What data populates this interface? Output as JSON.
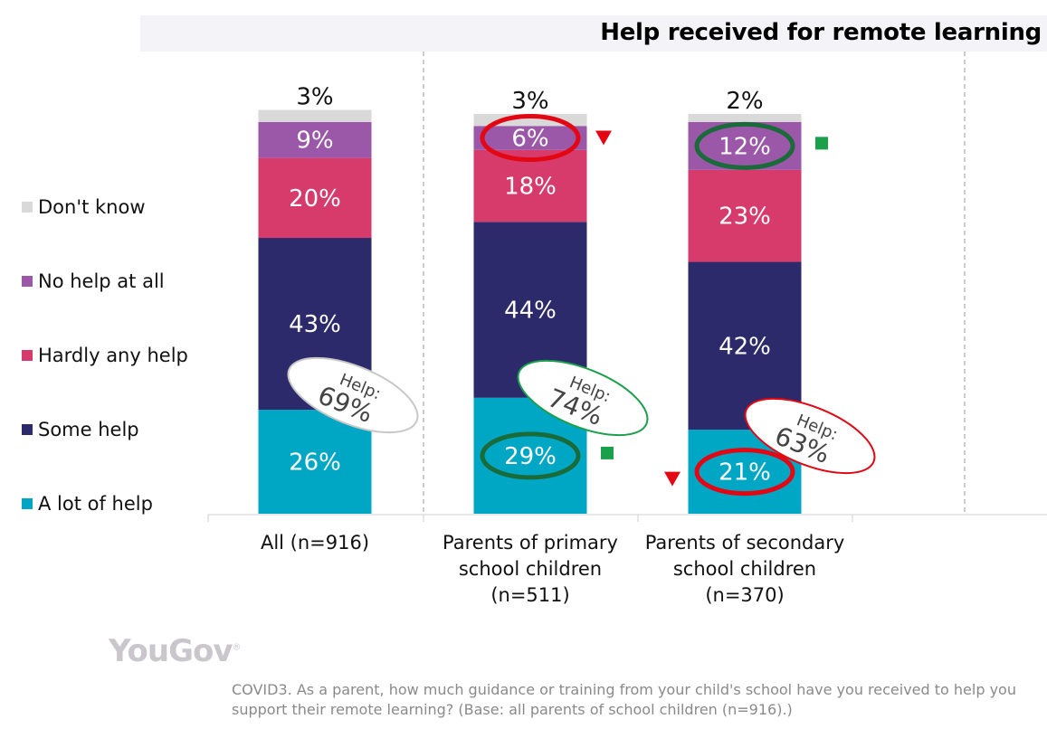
{
  "chart_data": {
    "type": "bar",
    "stacked": true,
    "title": "Help received for remote learning",
    "categories": [
      "All (n=916)",
      "Parents of primary school children (n=511)",
      "Parents of secondary school children (n=370)"
    ],
    "category_lines": [
      [
        "All (n=916)"
      ],
      [
        "Parents of primary",
        "school children",
        "(n=511)"
      ],
      [
        "Parents of secondary",
        "school children",
        "(n=370)"
      ]
    ],
    "series": [
      {
        "name": "A lot of help",
        "values": [
          26,
          29,
          21
        ],
        "color": "#00a7c5"
      },
      {
        "name": "Some help",
        "values": [
          43,
          44,
          42
        ],
        "color": "#2c2a6b"
      },
      {
        "name": "Hardly any help",
        "values": [
          20,
          18,
          23
        ],
        "color": "#d63b6c"
      },
      {
        "name": "No help at all",
        "values": [
          9,
          6,
          12
        ],
        "color": "#9b57a8"
      },
      {
        "name": "Don't know",
        "values": [
          3,
          3,
          2
        ],
        "color": "#d9d9d9"
      }
    ],
    "help_totals": [
      {
        "label": "Help:",
        "value": "69%",
        "color": "#c8c8c8"
      },
      {
        "label": "Help:",
        "value": "74%",
        "color": "#1a9f4b"
      },
      {
        "label": "Help:",
        "value": "63%",
        "color": "#e30613"
      }
    ],
    "highlights": [
      {
        "category": 1,
        "series": "No help at all",
        "color": "#e30613",
        "marker": "down-triangle"
      },
      {
        "category": 1,
        "series": "A lot of help",
        "color": "#1a6b3a",
        "marker": "square"
      },
      {
        "category": 2,
        "series": "No help at all",
        "color": "#1a6b3a",
        "marker": "square"
      },
      {
        "category": 2,
        "series": "A lot of help",
        "color": "#e30613",
        "marker": "down-triangle"
      }
    ],
    "ylim": [
      0,
      100
    ],
    "legend_position": "left"
  },
  "logo": "YouGov",
  "footnote": "COVID3. As a parent, how much guidance or training from your child's school have you received to help you support their remote learning? (Base: all parents of school children (n=916).)"
}
